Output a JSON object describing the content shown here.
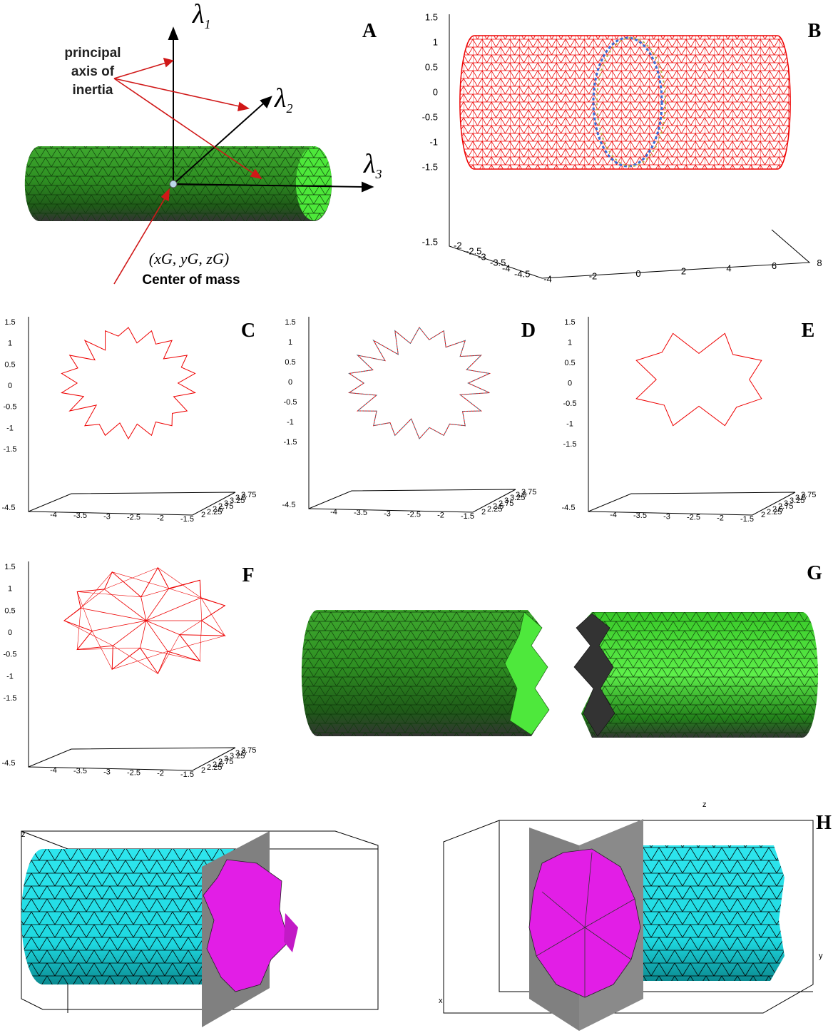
{
  "panels": {
    "A": {
      "label": "A",
      "axes": [
        {
          "symbol": "λ",
          "index": "1"
        },
        {
          "symbol": "λ",
          "index": "2"
        },
        {
          "symbol": "λ",
          "index": "3"
        }
      ],
      "annotation": [
        "principal",
        "axis of",
        "inertia"
      ],
      "center_coords": "(xG, yG, zG)",
      "center_caption": "Center of mass"
    },
    "B": {
      "label": "B",
      "z_ticks": [
        1.5,
        1,
        0.5,
        0,
        -0.5,
        -1,
        -1.5
      ],
      "z_floor": -1.5,
      "y_ticks": [
        -2,
        -2.5,
        -3,
        -3.5,
        -4,
        -4.5
      ],
      "x_ticks": [
        -4,
        -2,
        0,
        2,
        4,
        6,
        8
      ]
    },
    "C": {
      "label": "C",
      "z_ticks": [
        1.5,
        1,
        0.5,
        0,
        -0.5,
        -1,
        -1.5
      ],
      "z_floor": -4.5,
      "x_ticks": [
        -4,
        -3.5,
        -3,
        -2.5,
        -2,
        -1.5
      ],
      "y_ticks": [
        2,
        2.25,
        2.5,
        2.75,
        3,
        3.25,
        3.5,
        3.75
      ]
    },
    "D": {
      "label": "D",
      "z_ticks": [
        1.5,
        1,
        0.5,
        0,
        -0.5,
        -1,
        -1.5
      ],
      "z_floor": -4.5,
      "x_ticks": [
        -4,
        -3.5,
        -3,
        -2.5,
        -2,
        -1.5
      ],
      "y_ticks": [
        2,
        2.25,
        2.5,
        2.75,
        3,
        3.25,
        3.5,
        3.75
      ]
    },
    "E": {
      "label": "E",
      "z_ticks": [
        1.5,
        1,
        0.5,
        0,
        -0.5,
        -1,
        -1.5
      ],
      "z_floor": -4.5,
      "x_ticks": [
        -4,
        -3.5,
        -3,
        -2.5,
        -2,
        -1.5
      ],
      "y_ticks": [
        2,
        2.25,
        2.5,
        2.75,
        3,
        3.25,
        3.5,
        3.75
      ]
    },
    "F": {
      "label": "F",
      "z_ticks": [
        1.5,
        1,
        0.5,
        0,
        -0.5,
        -1,
        -1.5
      ],
      "z_floor": -4.5,
      "x_ticks": [
        -4,
        -3.5,
        -3,
        -2.5,
        -2,
        -1.5
      ],
      "y_ticks": [
        2,
        2.25,
        2.5,
        2.75,
        3,
        3.25,
        3.5,
        3.75
      ]
    },
    "G": {
      "label": "G"
    },
    "H": {
      "label": "H",
      "left_axes": [
        "z"
      ],
      "right_axes": [
        "z",
        "y",
        "x"
      ]
    }
  }
}
